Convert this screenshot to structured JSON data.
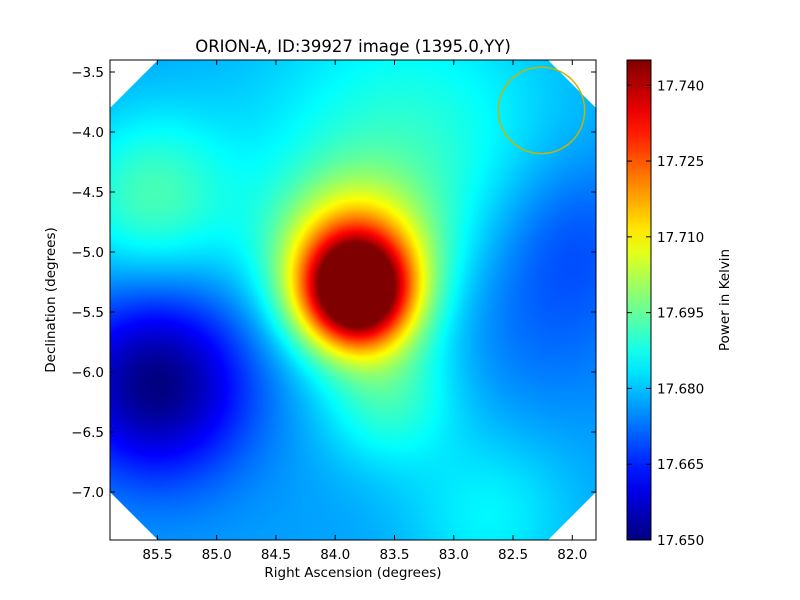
{
  "chart_data": {
    "type": "heatmap",
    "title": "ORION-A, ID:39927 image (1395.0,YY)",
    "xlabel": "Right Ascension (degrees)",
    "ylabel": "Declination (degrees)",
    "colorbar_label": "Power in Kelvin",
    "colormap": "jet",
    "xlim": [
      85.9,
      81.8
    ],
    "ylim": [
      -7.4,
      -3.4
    ],
    "x_ticks": [
      {
        "value": 85.5,
        "label": "85.5"
      },
      {
        "value": 85.0,
        "label": "85.0"
      },
      {
        "value": 84.5,
        "label": "84.5"
      },
      {
        "value": 84.0,
        "label": "84.0"
      },
      {
        "value": 83.5,
        "label": "83.5"
      },
      {
        "value": 83.0,
        "label": "83.0"
      },
      {
        "value": 82.5,
        "label": "82.5"
      },
      {
        "value": 82.0,
        "label": "82.0"
      }
    ],
    "y_ticks": [
      {
        "value": -3.5,
        "label": "−3.5"
      },
      {
        "value": -4.0,
        "label": "−4.0"
      },
      {
        "value": -4.5,
        "label": "−4.5"
      },
      {
        "value": -5.0,
        "label": "−5.0"
      },
      {
        "value": -5.5,
        "label": "−5.5"
      },
      {
        "value": -6.0,
        "label": "−6.0"
      },
      {
        "value": -6.5,
        "label": "−6.5"
      },
      {
        "value": -7.0,
        "label": "−7.0"
      }
    ],
    "colorbar_range": [
      17.65,
      17.745
    ],
    "colorbar_ticks": [
      {
        "value": 17.65,
        "label": "17.650"
      },
      {
        "value": 17.665,
        "label": "17.665"
      },
      {
        "value": 17.68,
        "label": "17.680"
      },
      {
        "value": 17.695,
        "label": "17.695"
      },
      {
        "value": 17.71,
        "label": "17.710"
      },
      {
        "value": 17.725,
        "label": "17.725"
      },
      {
        "value": 17.74,
        "label": "17.740"
      }
    ],
    "background_level": 17.677,
    "features": [
      {
        "ra": 83.82,
        "dec": -5.35,
        "sigma": 0.32,
        "peak": 17.745
      },
      {
        "ra": 83.85,
        "dec": -5.05,
        "sigma": 0.45,
        "peak": 17.71
      },
      {
        "ra": 83.55,
        "dec": -6.2,
        "sigma": 0.4,
        "peak": 17.69
      },
      {
        "ra": 85.55,
        "dec": -4.55,
        "sigma": 0.5,
        "peak": 17.692
      },
      {
        "ra": 83.4,
        "dec": -4.2,
        "sigma": 0.9,
        "peak": 17.69
      },
      {
        "ra": 85.5,
        "dec": -6.1,
        "sigma": 0.55,
        "peak": 17.65
      },
      {
        "ra": 82.3,
        "dec": -5.5,
        "sigma": 0.6,
        "peak": 17.671
      },
      {
        "ra": 82.0,
        "dec": -4.8,
        "sigma": 0.5,
        "peak": 17.67
      },
      {
        "ra": 82.7,
        "dec": -7.2,
        "sigma": 0.5,
        "peak": 17.685
      }
    ],
    "beam_circle": {
      "ra": 82.26,
      "dec": -3.82,
      "radius_deg": 0.36,
      "color": "#c8b400"
    },
    "grid": false
  }
}
